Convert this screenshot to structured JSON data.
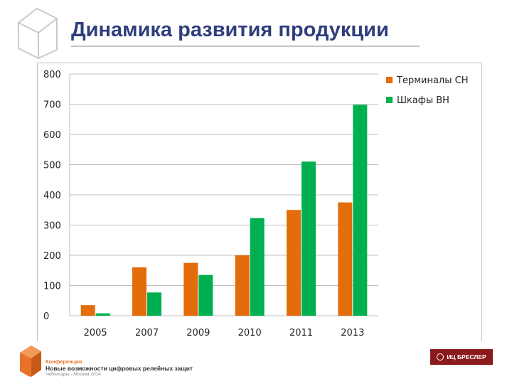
{
  "slide": {
    "title": "Динамика развития продукции"
  },
  "chart_data": {
    "type": "bar",
    "categories": [
      "2005",
      "2007",
      "2009",
      "2010",
      "2011",
      "2013"
    ],
    "series": [
      {
        "name": "Терминалы СН",
        "color": "#e46c0a",
        "values": [
          35,
          160,
          175,
          200,
          350,
          375
        ]
      },
      {
        "name": "Шкафы ВН",
        "color": "#00b050",
        "values": [
          8,
          77,
          135,
          323,
          510,
          698
        ]
      }
    ],
    "ylim": [
      0,
      800
    ],
    "yticks": [
      0,
      100,
      200,
      300,
      400,
      500,
      600,
      700,
      800
    ],
    "grid": true,
    "legend_position": "top-right"
  },
  "footer": {
    "conference_label": "Конференция",
    "conference_name": "Новые возможности цифровых релейных защит",
    "conference_place": "Чебоксары - Москва 2014",
    "brand": "ИЦ БРЕСЛЕР"
  }
}
